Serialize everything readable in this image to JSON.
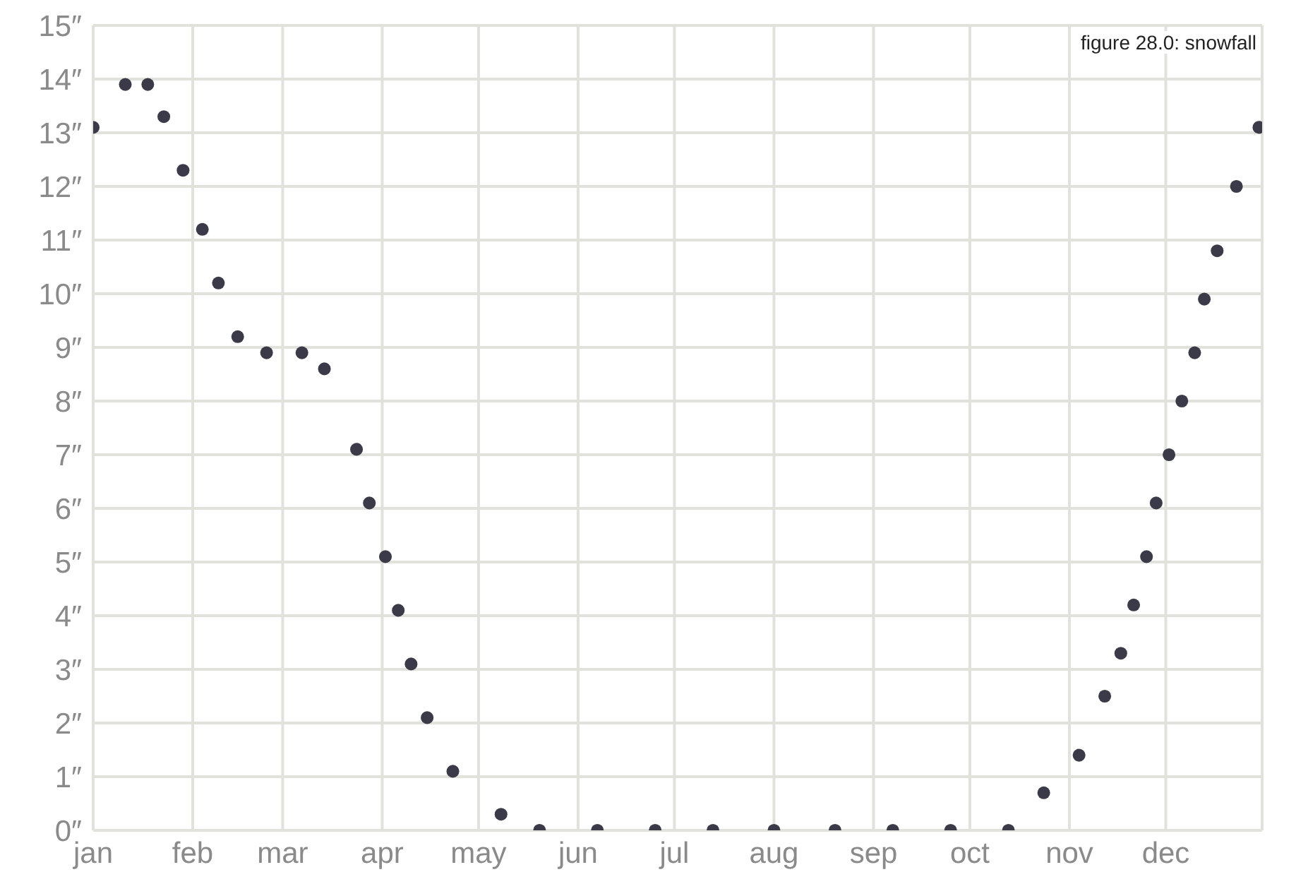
{
  "chart_data": {
    "type": "scatter",
    "title": "figure 28.0: snowfall",
    "x": [
      "--01-01",
      "--01-11",
      "--01-18",
      "--01-23",
      "--01-29",
      "--02-04",
      "--02-09",
      "--02-15",
      "--02-24",
      "--03-07",
      "--03-14",
      "--03-24",
      "--03-28",
      "--04-02",
      "--04-06",
      "--04-10",
      "--04-15",
      "--04-23",
      "--05-08",
      "--05-20",
      "--06-07",
      "--06-25",
      "--07-13",
      "--08-01",
      "--08-20",
      "--09-07",
      "--09-25",
      "--10-13",
      "--10-24",
      "--11-04",
      "--11-12",
      "--11-17",
      "--11-21",
      "--11-25",
      "--11-28",
      "--12-02",
      "--12-06",
      "--12-10",
      "--12-13",
      "--12-17",
      "--12-23",
      "--12-30"
    ],
    "series": [
      {
        "color": "#3b3a48",
        "values": [
          13.1,
          13.9,
          13.9,
          13.3,
          12.3,
          11.2,
          10.2,
          9.2,
          8.9,
          8.9,
          8.6,
          7.1,
          6.1,
          5.1,
          4.1,
          3.1,
          2.1,
          1.1,
          0.3,
          0,
          0,
          0,
          0,
          0,
          0,
          0,
          0,
          0,
          0.7,
          1.4,
          2.5,
          3.3,
          4.2,
          5.1,
          6.1,
          7.0,
          8.0,
          8.9,
          9.9,
          10.8,
          12.0,
          13.1
        ]
      }
    ],
    "xlim": [
      "--01-01",
      "--12-31"
    ],
    "xticks": [
      {
        "value": "--01-01",
        "label": "jan"
      },
      {
        "value": "--02-01",
        "label": "feb"
      },
      {
        "value": "--03-01",
        "label": "mar"
      },
      {
        "value": "--04-01",
        "label": "apr"
      },
      {
        "value": "--05-01",
        "label": "may"
      },
      {
        "value": "--06-01",
        "label": "jun"
      },
      {
        "value": "--07-01",
        "label": "jul"
      },
      {
        "value": "--08-01",
        "label": "aug"
      },
      {
        "value": "--09-01",
        "label": "sep"
      },
      {
        "value": "--10-01",
        "label": "oct"
      },
      {
        "value": "--11-01",
        "label": "nov"
      },
      {
        "value": "--12-01",
        "label": "dec"
      }
    ],
    "ylim": [
      0,
      15
    ],
    "yticks": [
      {
        "value": 0,
        "label": "0″"
      },
      {
        "value": 1,
        "label": "1″"
      },
      {
        "value": 2,
        "label": "2″"
      },
      {
        "value": 3,
        "label": "3″"
      },
      {
        "value": 4,
        "label": "4″"
      },
      {
        "value": 5,
        "label": "5″"
      },
      {
        "value": 6,
        "label": "6″"
      },
      {
        "value": 7,
        "label": "7″"
      },
      {
        "value": 8,
        "label": "8″"
      },
      {
        "value": 9,
        "label": "9″"
      },
      {
        "value": 10,
        "label": "10″"
      },
      {
        "value": 11,
        "label": "11″"
      },
      {
        "value": 12,
        "label": "12″"
      },
      {
        "value": 13,
        "label": "13″"
      },
      {
        "value": 14,
        "label": "14″"
      },
      {
        "value": 15,
        "label": "15″"
      }
    ],
    "grid": true,
    "marker": "circle"
  }
}
